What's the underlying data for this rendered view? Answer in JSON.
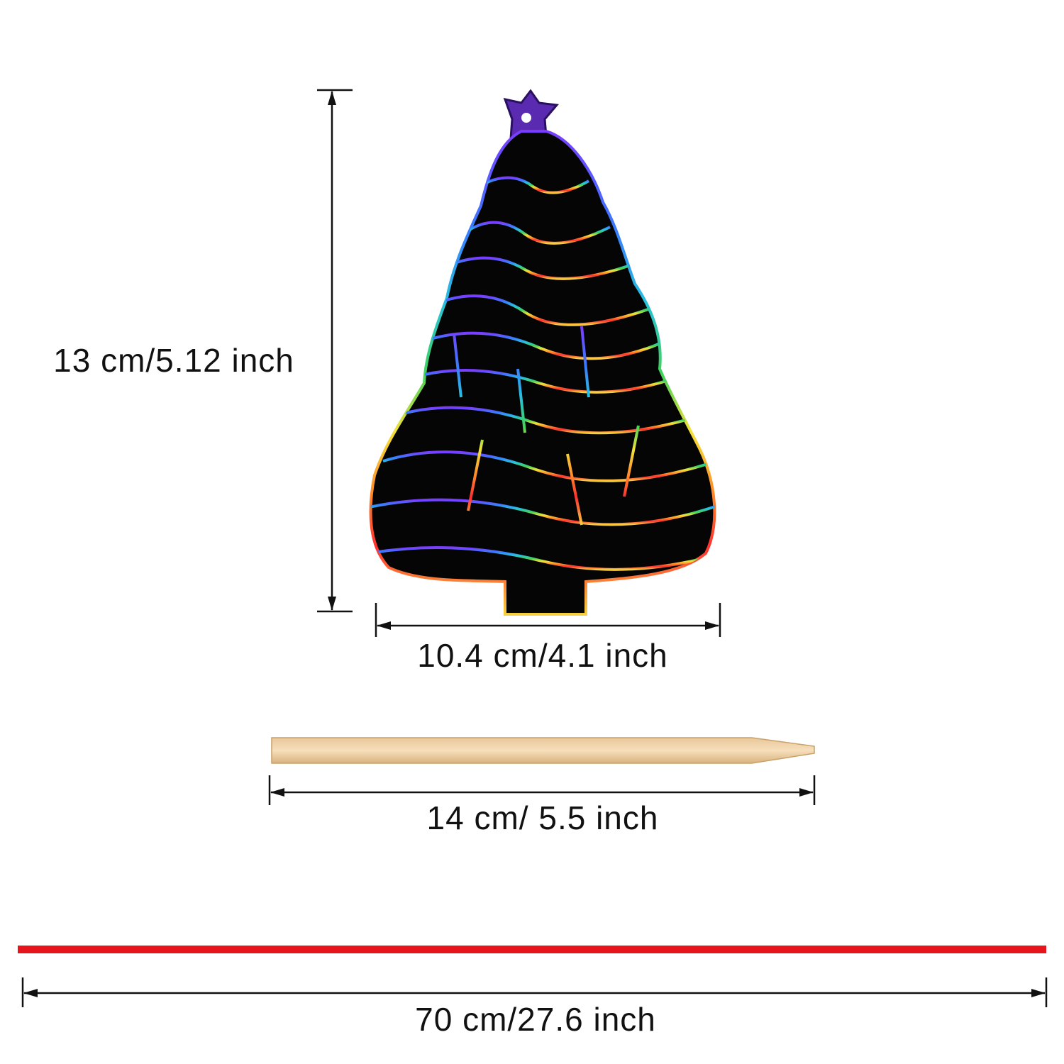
{
  "dimensions": {
    "height_label": "13 cm/5.12 inch",
    "width_label": "10.4 cm/4.1 inch",
    "stick_label": "14 cm/ 5.5 inch",
    "ribbon_label": "70 cm/27.6 inch"
  }
}
